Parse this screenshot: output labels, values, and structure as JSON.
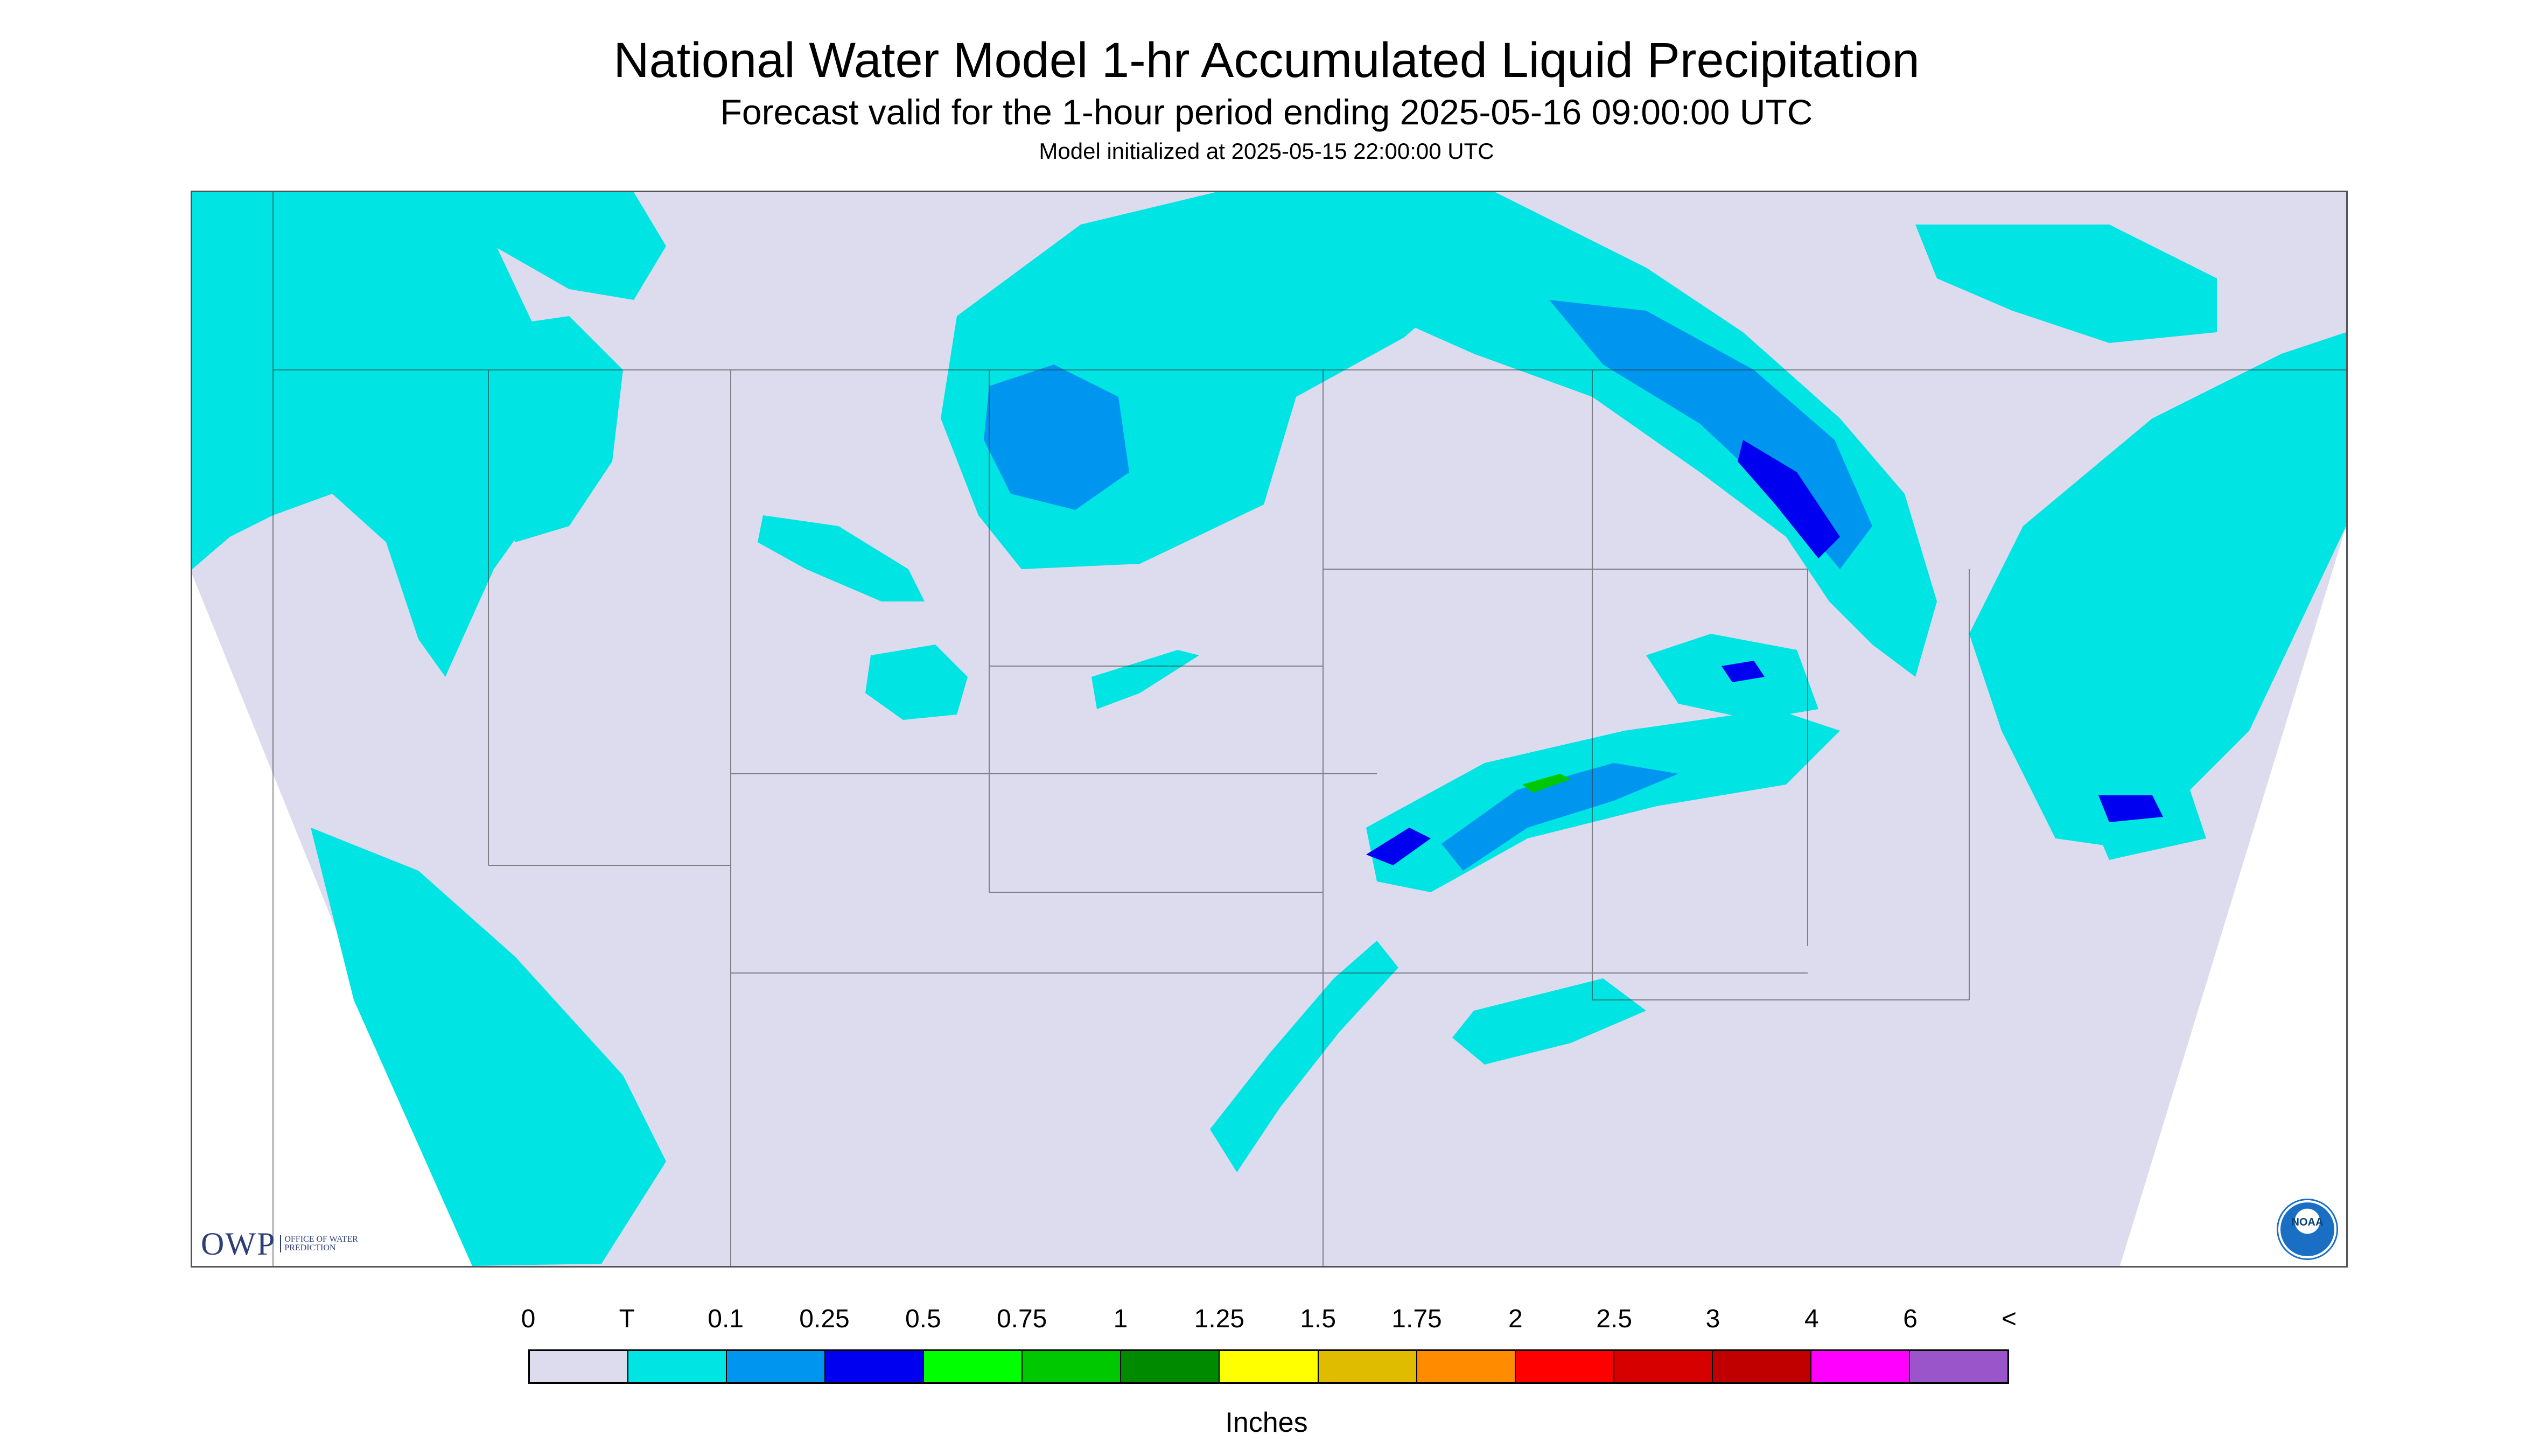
{
  "title": "National Water Model 1-hr Accumulated Liquid Precipitation",
  "subtitle": "Forecast valid for the 1-hour period ending 2025-05-16 09:00:00 UTC",
  "initialized": "Model initialized at 2025-05-15 22:00:00 UTC",
  "legend": {
    "labels": [
      "0",
      "T",
      "0.1",
      "0.25",
      "0.5",
      "0.75",
      "1",
      "1.25",
      "1.5",
      "1.75",
      "2",
      "2.5",
      "3",
      "4",
      "6",
      "<"
    ],
    "colors": [
      "#dcdcee",
      "#00e4e4",
      "#0096f0",
      "#0000f0",
      "#00ff00",
      "#00c800",
      "#008a00",
      "#ffff00",
      "#e0bc00",
      "#ff8c00",
      "#ff0000",
      "#d60000",
      "#c00000",
      "#ff00ff",
      "#9955c9"
    ],
    "units": "Inches"
  },
  "map": {
    "background_color": "#dcdcee",
    "trace_color": "#00e4e4",
    "light_color": "#0096f0",
    "moderate_color": "#0000f0",
    "heavy_color": "#00c800",
    "border_color": "#333333"
  },
  "logos": {
    "owp_mark": "OWP",
    "owp_text": "OFFICE OF WATER PREDICTION",
    "noaa_text": "NOAA"
  }
}
